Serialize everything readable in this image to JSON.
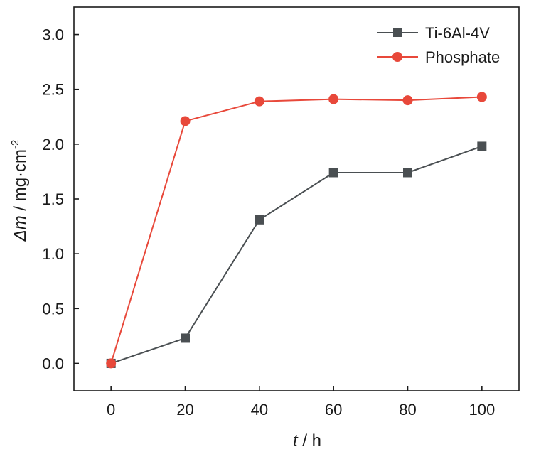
{
  "chart_data": {
    "type": "line",
    "x": [
      0,
      20,
      40,
      60,
      80,
      100
    ],
    "xlim": [
      -10,
      110
    ],
    "ylim": [
      -0.25,
      3.25
    ],
    "x_ticks": [
      "0",
      "20",
      "40",
      "60",
      "80",
      "100"
    ],
    "y_ticks": [
      "0.0",
      "0.5",
      "1.0",
      "1.5",
      "2.0",
      "2.5",
      "3.0"
    ],
    "xlabel": {
      "italic": "t",
      "rest": " / h"
    },
    "ylabel": {
      "delta": "Δ",
      "italic": "m",
      "rest": " / mg·cm",
      "sup": "-2"
    },
    "grid": false,
    "legend_position": "top-right",
    "series": [
      {
        "name": "Ti-6Al-4V",
        "marker": "square",
        "color": "#4a4f52",
        "values": [
          0.0,
          0.23,
          1.31,
          1.74,
          1.74,
          1.98
        ]
      },
      {
        "name": "Phosphate",
        "marker": "circle",
        "color": "#e8483a",
        "values": [
          0.0,
          2.21,
          2.39,
          2.41,
          2.4,
          2.43
        ]
      }
    ]
  }
}
